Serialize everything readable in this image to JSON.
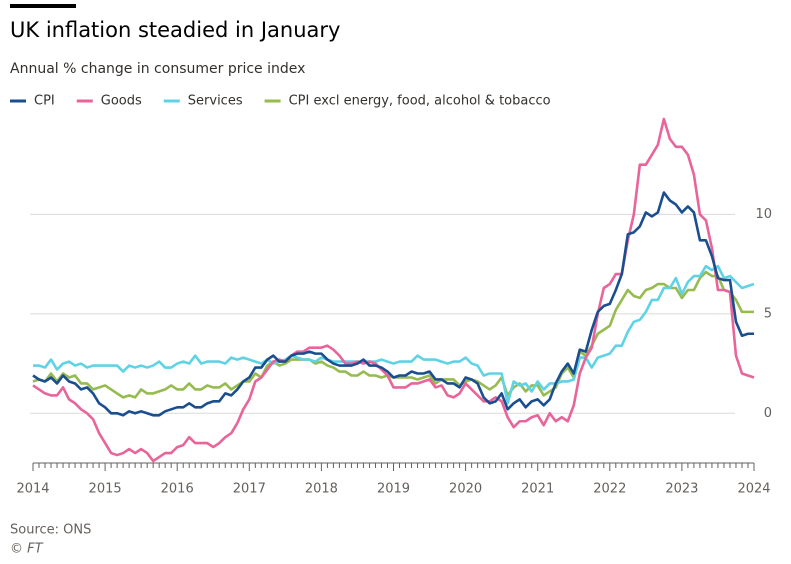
{
  "chart_data": {
    "type": "line",
    "title": "UK inflation steadied in January",
    "subtitle": "Annual % change in consumer price index",
    "source": "Source: ONS",
    "credit": "© FT",
    "categories": [
      "2014",
      null,
      null,
      null,
      null,
      null,
      null,
      null,
      null,
      null,
      null,
      null,
      "2015",
      null,
      null,
      null,
      null,
      null,
      null,
      null,
      null,
      null,
      null,
      null,
      "2016",
      null,
      null,
      null,
      null,
      null,
      null,
      null,
      null,
      null,
      null,
      null,
      "2017",
      null,
      null,
      null,
      null,
      null,
      null,
      null,
      null,
      null,
      null,
      null,
      "2018",
      null,
      null,
      null,
      null,
      null,
      null,
      null,
      null,
      null,
      null,
      null,
      "2019",
      null,
      null,
      null,
      null,
      null,
      null,
      null,
      null,
      null,
      null,
      null,
      "2020",
      null,
      null,
      null,
      null,
      null,
      null,
      null,
      null,
      null,
      null,
      null,
      "2021",
      null,
      null,
      null,
      null,
      null,
      null,
      null,
      null,
      null,
      null,
      null,
      "2022",
      null,
      null,
      null,
      null,
      null,
      null,
      null,
      null,
      null,
      null,
      null,
      "2023",
      null,
      null,
      null,
      null,
      null,
      null,
      null,
      null,
      null,
      null,
      null,
      "2024"
    ],
    "series": [
      {
        "name": "CPI",
        "color": "#1a4e8f",
        "values": [
          1.9,
          1.7,
          1.6,
          1.8,
          1.5,
          1.9,
          1.6,
          1.5,
          1.2,
          1.3,
          1.0,
          0.5,
          0.3,
          0.0,
          0.0,
          -0.1,
          0.1,
          0.0,
          0.1,
          0.0,
          -0.1,
          -0.1,
          0.1,
          0.2,
          0.3,
          0.3,
          0.5,
          0.3,
          0.3,
          0.5,
          0.6,
          0.6,
          1.0,
          0.9,
          1.2,
          1.6,
          1.8,
          2.3,
          2.3,
          2.7,
          2.9,
          2.6,
          2.6,
          2.9,
          3.0,
          3.0,
          3.1,
          3.0,
          3.0,
          2.7,
          2.5,
          2.4,
          2.4,
          2.4,
          2.5,
          2.7,
          2.4,
          2.4,
          2.3,
          2.1,
          1.8,
          1.9,
          1.9,
          2.1,
          2.0,
          2.0,
          2.1,
          1.7,
          1.7,
          1.5,
          1.5,
          1.3,
          1.8,
          1.7,
          1.5,
          0.8,
          0.5,
          0.6,
          1.0,
          0.2,
          0.5,
          0.7,
          0.3,
          0.6,
          0.7,
          0.4,
          0.7,
          1.5,
          2.1,
          2.5,
          2.0,
          3.2,
          3.1,
          4.2,
          5.1,
          5.4,
          5.5,
          6.2,
          7.0,
          9.0,
          9.1,
          9.4,
          10.1,
          9.9,
          10.1,
          11.1,
          10.7,
          10.5,
          10.1,
          10.4,
          10.1,
          8.7,
          8.7,
          7.9,
          6.8,
          6.7,
          6.7,
          4.6,
          3.9,
          4.0,
          4.0
        ]
      },
      {
        "name": "Goods",
        "color": "#e8649a",
        "values": [
          1.4,
          1.2,
          1.0,
          0.9,
          0.9,
          1.3,
          0.7,
          0.5,
          0.2,
          0.0,
          -0.3,
          -1.0,
          -1.5,
          -2.0,
          -2.1,
          -2.0,
          -1.8,
          -2.0,
          -1.8,
          -2.0,
          -2.4,
          -2.2,
          -2.0,
          -2.0,
          -1.7,
          -1.6,
          -1.2,
          -1.5,
          -1.5,
          -1.5,
          -1.7,
          -1.5,
          -1.2,
          -1.0,
          -0.5,
          0.2,
          0.7,
          1.6,
          1.8,
          2.2,
          2.6,
          2.7,
          2.6,
          2.9,
          3.1,
          3.1,
          3.3,
          3.3,
          3.3,
          3.4,
          3.2,
          2.9,
          2.5,
          2.5,
          2.6,
          2.5,
          2.6,
          2.5,
          2.2,
          1.9,
          1.3,
          1.3,
          1.3,
          1.5,
          1.5,
          1.6,
          1.7,
          1.3,
          1.4,
          0.9,
          0.8,
          1.0,
          1.5,
          1.2,
          0.9,
          0.6,
          0.6,
          0.8,
          0.6,
          -0.2,
          -0.7,
          -0.4,
          -0.4,
          -0.2,
          -0.1,
          -0.6,
          0.0,
          -0.4,
          -0.2,
          -0.4,
          0.4,
          2.0,
          2.8,
          3.3,
          5.0,
          6.3,
          6.5,
          7.0,
          7.0,
          8.7,
          10.0,
          12.5,
          12.5,
          13.0,
          13.5,
          14.8,
          13.8,
          13.4,
          13.4,
          13.0,
          12.0,
          10.0,
          9.7,
          8.3,
          6.2,
          6.2,
          6.1,
          2.9,
          2.0,
          1.9,
          1.8
        ]
      },
      {
        "name": "Services",
        "color": "#5fd3e6",
        "values": [
          2.4,
          2.4,
          2.3,
          2.7,
          2.2,
          2.5,
          2.6,
          2.4,
          2.5,
          2.3,
          2.4,
          2.4,
          2.4,
          2.4,
          2.4,
          2.1,
          2.4,
          2.3,
          2.4,
          2.3,
          2.4,
          2.6,
          2.3,
          2.3,
          2.5,
          2.6,
          2.5,
          2.9,
          2.5,
          2.6,
          2.6,
          2.6,
          2.5,
          2.8,
          2.7,
          2.8,
          2.7,
          2.6,
          2.5,
          2.7,
          2.5,
          2.6,
          2.7,
          2.9,
          2.8,
          2.7,
          2.7,
          2.6,
          2.8,
          2.7,
          2.6,
          2.6,
          2.6,
          2.6,
          2.6,
          2.6,
          2.6,
          2.6,
          2.7,
          2.6,
          2.5,
          2.6,
          2.6,
          2.6,
          2.9,
          2.7,
          2.7,
          2.7,
          2.6,
          2.5,
          2.6,
          2.6,
          2.8,
          2.5,
          2.4,
          1.9,
          2.0,
          2.0,
          2.0,
          0.5,
          1.6,
          1.4,
          1.5,
          1.1,
          1.6,
          1.2,
          1.5,
          1.5,
          1.6,
          1.6,
          1.7,
          2.8,
          2.8,
          2.3,
          2.8,
          2.9,
          3.0,
          3.4,
          3.4,
          4.1,
          4.6,
          4.7,
          5.1,
          5.7,
          5.7,
          6.3,
          6.3,
          6.8,
          6.0,
          6.6,
          6.9,
          6.9,
          7.4,
          7.2,
          7.4,
          6.8,
          6.9,
          6.6,
          6.3,
          6.4,
          6.5
        ]
      },
      {
        "name": "CPI excl energy, food, alcohol & tobacco",
        "color": "#96bb4f",
        "values": [
          1.6,
          1.7,
          1.6,
          2.0,
          1.6,
          2.0,
          1.8,
          1.9,
          1.5,
          1.5,
          1.2,
          1.3,
          1.4,
          1.2,
          1.0,
          0.8,
          0.9,
          0.8,
          1.2,
          1.0,
          1.0,
          1.1,
          1.2,
          1.4,
          1.2,
          1.2,
          1.5,
          1.2,
          1.2,
          1.4,
          1.3,
          1.3,
          1.5,
          1.2,
          1.4,
          1.6,
          1.6,
          2.0,
          1.8,
          2.4,
          2.6,
          2.4,
          2.5,
          2.7,
          2.7,
          2.7,
          2.7,
          2.5,
          2.6,
          2.4,
          2.3,
          2.1,
          2.1,
          1.9,
          1.9,
          2.1,
          1.9,
          1.9,
          1.8,
          1.9,
          1.8,
          1.8,
          1.8,
          1.8,
          1.7,
          1.8,
          1.9,
          1.5,
          1.7,
          1.7,
          1.7,
          1.4,
          1.6,
          1.7,
          1.6,
          1.4,
          1.2,
          1.4,
          1.8,
          0.9,
          1.3,
          1.5,
          1.1,
          1.4,
          1.4,
          0.9,
          1.1,
          1.3,
          2.0,
          2.3,
          1.8,
          3.1,
          2.9,
          3.4,
          4.0,
          4.2,
          4.4,
          5.2,
          5.7,
          6.2,
          5.9,
          5.8,
          6.2,
          6.3,
          6.5,
          6.5,
          6.3,
          6.3,
          5.8,
          6.2,
          6.2,
          6.8,
          7.1,
          6.9,
          6.9,
          6.2,
          6.1,
          5.7,
          5.1,
          5.1,
          5.1
        ]
      }
    ],
    "ylim": [
      -2.5,
      15
    ],
    "yticks": [
      0,
      5,
      10
    ],
    "grid": true,
    "legend": "top-left"
  }
}
